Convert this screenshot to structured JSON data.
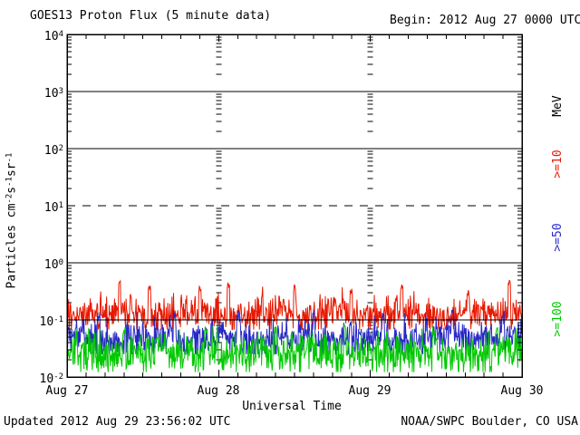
{
  "chart_data": {
    "type": "line",
    "title": "GOES13 Proton Flux (5 minute data)",
    "begin_label": "Begin: 2012 Aug 27 0000 UTC",
    "updated_label": "Updated 2012 Aug 29 23:56:02 UTC",
    "source_label": "NOAA/SWPC Boulder, CO USA",
    "x_axis": {
      "label": "Universal Time",
      "tick_labels": [
        "Aug 27",
        "Aug 28",
        "Aug 29",
        "Aug 30"
      ],
      "range_hours": 72,
      "minor_tick_hours": 3,
      "begin": "2012 Aug 27 0000 UTC"
    },
    "y_axis": {
      "base": "10",
      "tick_exponents": [
        "4",
        "3",
        "2",
        "1",
        "0",
        "-1",
        "-2"
      ],
      "log_min": -2,
      "log_max": 4,
      "unit_segments": {
        "p1": "Particles  cm",
        "s1": "-2",
        "p2": "s",
        "s2": "-1",
        "p3": "sr",
        "s3": "-1"
      },
      "minor_tick_multiples": [
        2,
        3,
        4,
        5,
        6,
        7,
        8,
        9
      ]
    },
    "gridlines": {
      "solid_at_flux": [
        1000,
        100,
        1,
        0.1
      ],
      "dashed_at_flux": [
        10
      ],
      "day_boundary_hours": [
        24,
        48
      ]
    },
    "legend": {
      "unit": "MeV",
      "items": [
        {
          "label": ">=10",
          "color": "#e81800"
        },
        {
          "label": ">=50",
          "color": "#2828c8"
        },
        {
          "label": ">=100",
          "color": "#00c800"
        }
      ]
    },
    "series": [
      {
        "name": ">=10 MeV",
        "color": "#e81800",
        "median_flux": 0.13,
        "log10_sigma": 0.16,
        "clip_low": 0.068,
        "clip_high": 0.5,
        "spike_hours": [
          8.3,
          13,
          21,
          25.5,
          36,
          45,
          53,
          63.5,
          70
        ],
        "spike_values": [
          0.47,
          0.35,
          0.33,
          0.38,
          0.34,
          0.3,
          0.36,
          0.31,
          0.42
        ],
        "seed": 3
      },
      {
        "name": ">=50 MeV",
        "color": "#2828c8",
        "median_flux": 0.048,
        "log10_sigma": 0.17,
        "clip_low": 0.025,
        "clip_high": 0.15,
        "spike_hours": [
          5,
          17,
          27,
          39,
          50,
          61,
          69
        ],
        "spike_values": [
          0.12,
          0.13,
          0.12,
          0.14,
          0.12,
          0.13,
          0.12
        ],
        "seed": 7
      },
      {
        "name": ">=100 MeV",
        "color": "#00c800",
        "median_flux": 0.026,
        "log10_sigma": 0.19,
        "clip_low": 0.0122,
        "clip_high": 0.08,
        "spike_hours": [
          9,
          22,
          33,
          44,
          58,
          68
        ],
        "spike_values": [
          0.068,
          0.072,
          0.065,
          0.07,
          0.066,
          0.071
        ],
        "seed": 13
      }
    ],
    "samples_per_series": 864,
    "cadence_minutes": 5,
    "slow_modulation_dex": 0.05,
    "frame_color": "#000000",
    "background_color": "#ffffff"
  }
}
